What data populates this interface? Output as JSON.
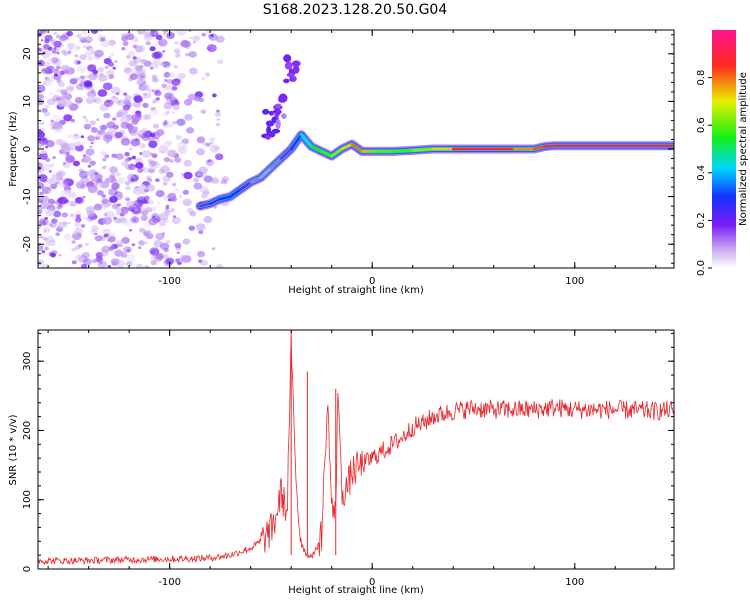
{
  "figure": {
    "title": "S168.2023.128.20.50.G04"
  },
  "chart_data": [
    {
      "type": "heatmap",
      "title": "S168.2023.128.20.50.G04",
      "xlabel": "Height of straight line (km)",
      "ylabel": "Frequency (Hz)",
      "xlim": [
        -165,
        149
      ],
      "ylim": [
        -25,
        25
      ],
      "xticks": [
        -100,
        0,
        100
      ],
      "yticks": [
        -20,
        -10,
        0,
        10,
        20
      ],
      "grid": false,
      "colormap": "rainbow (white-purple-blue-cyan-green-yellow-red-magenta)",
      "colorbar": {
        "label": "Normalized spectral amplitude",
        "ticks": [
          "0.0",
          "0.2",
          "0.4",
          "0.6",
          "0.8"
        ],
        "range": [
          0,
          1
        ]
      },
      "ridge": {
        "description": "frequency of peak spectral amplitude vs height",
        "x": [
          -85,
          -80,
          -75,
          -70,
          -65,
          -60,
          -55,
          -50,
          -45,
          -40,
          -35,
          -30,
          -25,
          -20,
          -15,
          -10,
          -5,
          0,
          10,
          20,
          30,
          40,
          50,
          60,
          70,
          80,
          85,
          90,
          100,
          120,
          149
        ],
        "y": [
          -12,
          -11.5,
          -10.5,
          -10,
          -8.5,
          -7,
          -6,
          -4,
          -2,
          0,
          3,
          0.5,
          -0.5,
          -1.5,
          0,
          1,
          -0.5,
          -0.5,
          -0.5,
          -0.3,
          0,
          0,
          0,
          0,
          0,
          0,
          0.5,
          0.7,
          0.7,
          0.7,
          0.7
        ],
        "amplitude": [
          0.15,
          0.2,
          0.25,
          0.35,
          0.25,
          0.15,
          0.1,
          0.1,
          0.15,
          0.2,
          0.35,
          0.5,
          0.6,
          0.55,
          0.7,
          0.75,
          0.85,
          0.65,
          0.55,
          0.6,
          0.65,
          0.8,
          0.9,
          0.9,
          0.8,
          0.75,
          0.9,
          0.95,
          0.95,
          0.95,
          0.95
        ]
      },
      "secondary_features": [
        {
          "x": -50,
          "y": 5,
          "amplitude": 0.15
        },
        {
          "x": -40,
          "y": 17,
          "amplitude": 0.15
        },
        {
          "x": -45,
          "y": 8,
          "amplitude": 0.1
        }
      ],
      "noise_region": {
        "x_range": [
          -165,
          -65
        ],
        "y_range": [
          -25,
          25
        ],
        "amplitude": 0.1
      }
    },
    {
      "type": "line",
      "xlabel": "Height of straight line (km)",
      "ylabel": "SNR (10 * v/v)",
      "xlim": [
        -165,
        149
      ],
      "ylim": [
        0,
        345
      ],
      "xticks": [
        -100,
        0,
        100
      ],
      "yticks": [
        0,
        100,
        200,
        300
      ],
      "grid": false,
      "series": [
        {
          "color": "#e8282d",
          "x": [
            -165,
            -150,
            -130,
            -110,
            -90,
            -80,
            -70,
            -65,
            -60,
            -55,
            -50,
            -48,
            -45,
            -42,
            -40,
            -38,
            -36,
            -34,
            -32,
            -30,
            -28,
            -25,
            -22,
            -20,
            -18,
            -17,
            -15,
            -12,
            -10,
            -5,
            0,
            5,
            10,
            15,
            20,
            25,
            30,
            40,
            50,
            60,
            70,
            80,
            90,
            100,
            110,
            120,
            130,
            140,
            149
          ],
          "y": [
            12,
            12,
            13,
            14,
            15,
            16,
            20,
            25,
            30,
            40,
            55,
            70,
            110,
            80,
            330,
            150,
            60,
            30,
            20,
            20,
            25,
            50,
            240,
            90,
            75,
            270,
            110,
            120,
            140,
            150,
            160,
            170,
            180,
            190,
            205,
            210,
            220,
            228,
            232,
            230,
            230,
            230,
            233,
            230,
            230,
            230,
            229,
            228,
            230
          ],
          "peak_labels": [
            {
              "x": -40,
              "y": 345
            },
            {
              "x": -32,
              "y": 285
            },
            {
              "x": -18,
              "y": 260
            }
          ]
        }
      ]
    }
  ]
}
